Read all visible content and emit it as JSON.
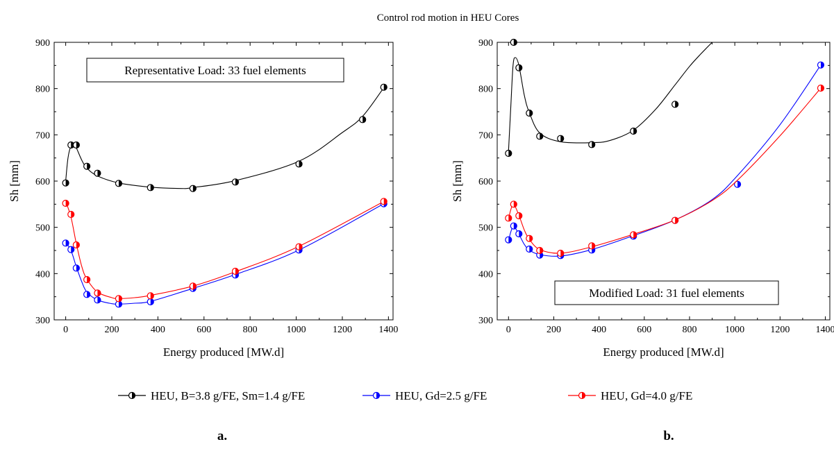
{
  "figure": {
    "title": "Control rod motion in HEU Cores",
    "panel_labels": [
      "a.",
      "b."
    ]
  },
  "legend": [
    {
      "label": "HEU, B=3.8 g/FE, Sm=1.4 g/FE",
      "color": "#000000"
    },
    {
      "label": "HEU, Gd=2.5 g/FE",
      "color": "#0000ff"
    },
    {
      "label": "HEU, Gd=4.0 g/FE",
      "color": "#ff0000"
    }
  ],
  "chart_data": [
    {
      "type": "scatter",
      "annotation": "Representative Load: 33 fuel elements",
      "xlabel": "Energy produced [MW.d]",
      "ylabel": "Sh [mm]",
      "xlim": [
        -50,
        1420
      ],
      "ylim": [
        300,
        900
      ],
      "xticks": [
        0,
        200,
        400,
        600,
        800,
        1000,
        1200,
        1400
      ],
      "yticks": [
        300,
        400,
        500,
        600,
        700,
        800,
        900
      ],
      "series": [
        {
          "name": "HEU, B=3.8 g/FE, Sm=1.4 g/FE",
          "color": "#000000",
          "x": [
            0,
            23,
            46,
            92,
            138,
            230,
            368,
            552,
            736,
            1012,
            1288,
            1380
          ],
          "y": [
            596,
            678,
            678,
            632,
            617,
            595,
            586,
            584,
            598,
            637,
            733,
            803
          ],
          "fit_x": [
            0,
            10,
            23,
            35,
            46,
            70,
            92,
            138,
            230,
            368,
            500,
            552,
            736,
            1012,
            1200,
            1288,
            1380
          ],
          "fit_y": [
            600,
            650,
            676,
            678,
            672,
            645,
            628,
            611,
            596,
            587,
            584,
            586,
            601,
            643,
            705,
            740,
            802
          ]
        },
        {
          "name": "HEU, Gd=2.5 g/FE",
          "color": "#0000ff",
          "x": [
            0,
            23,
            46,
            92,
            138,
            230,
            368,
            552,
            736,
            1012,
            1380
          ],
          "y": [
            466,
            452,
            412,
            355,
            343,
            334,
            339,
            368,
            397,
            451,
            551
          ],
          "fit_x": [
            0,
            23,
            46,
            70,
            92,
            138,
            200,
            230,
            300,
            368,
            552,
            736,
            1012,
            1380
          ],
          "fit_y": [
            468,
            450,
            415,
            382,
            360,
            343,
            335,
            334,
            336,
            340,
            368,
            398,
            451,
            551
          ],
          "marker_style": "half-filled"
        },
        {
          "name": "HEU, Gd=4.0 g/FE",
          "color": "#ff0000",
          "x": [
            0,
            23,
            46,
            92,
            138,
            230,
            368,
            552,
            736,
            1012,
            1380
          ],
          "y": [
            552,
            528,
            462,
            387,
            358,
            346,
            352,
            373,
            405,
            458,
            556
          ],
          "fit_x": [
            0,
            23,
            46,
            70,
            92,
            138,
            200,
            230,
            300,
            368,
            552,
            736,
            1012,
            1380
          ],
          "fit_y": [
            556,
            522,
            465,
            415,
            388,
            360,
            348,
            346,
            348,
            353,
            373,
            404,
            459,
            556
          ],
          "marker_style": "half-filled"
        }
      ]
    },
    {
      "type": "scatter",
      "annotation": "Modified Load: 31 fuel elements",
      "xlabel": "Energy produced [MW.d]",
      "ylabel": "Sh [mm]",
      "xlim": [
        -50,
        1420
      ],
      "ylim": [
        300,
        900
      ],
      "xticks": [
        0,
        200,
        400,
        600,
        800,
        1000,
        1200,
        1400
      ],
      "yticks": [
        300,
        400,
        500,
        600,
        700,
        800,
        900
      ],
      "series": [
        {
          "name": "HEU, B=3.8 g/FE, Sm=1.4 g/FE",
          "color": "#000000",
          "x": [
            0,
            23,
            46,
            92,
            138,
            230,
            368,
            552,
            736
          ],
          "y": [
            660,
            900,
            845,
            747,
            697,
            692,
            679,
            708,
            766
          ],
          "fit_x": [
            0,
            10,
            20,
            30,
            46,
            70,
            92,
            138,
            230,
            368,
            450,
            552,
            650,
            736,
            800,
            850,
            900
          ],
          "fit_y": [
            665,
            760,
            850,
            867,
            850,
            785,
            748,
            704,
            685,
            683,
            688,
            710,
            755,
            808,
            848,
            875,
            900
          ]
        },
        {
          "name": "HEU, Gd=2.5 g/FE",
          "color": "#0000ff",
          "x": [
            0,
            23,
            46,
            92,
            138,
            230,
            368,
            552,
            736,
            1012,
            1380
          ],
          "y": [
            473,
            503,
            486,
            453,
            440,
            439,
            451,
            481,
            515,
            593,
            851
          ],
          "fit_x": [
            0,
            10,
            23,
            46,
            70,
            92,
            138,
            230,
            368,
            552,
            736,
            900,
            1012,
            1200,
            1380
          ],
          "fit_y": [
            470,
            490,
            502,
            485,
            463,
            451,
            441,
            438,
            452,
            482,
            516,
            560,
            612,
            722,
            851
          ],
          "marker_style": "half-filled"
        },
        {
          "name": "HEU, Gd=4.0 g/FE",
          "color": "#ff0000",
          "x": [
            0,
            23,
            46,
            92,
            138,
            230,
            368,
            552,
            736,
            1380
          ],
          "y": [
            520,
            550,
            525,
            476,
            450,
            444,
            460,
            484,
            515,
            801
          ],
          "fit_x": [
            0,
            10,
            23,
            46,
            70,
            92,
            138,
            230,
            368,
            552,
            736,
            900,
            1012,
            1200,
            1380
          ],
          "fit_y": [
            518,
            538,
            550,
            526,
            494,
            474,
            452,
            444,
            458,
            485,
            516,
            558,
            602,
            698,
            801
          ],
          "marker_style": "half-filled"
        }
      ]
    }
  ]
}
